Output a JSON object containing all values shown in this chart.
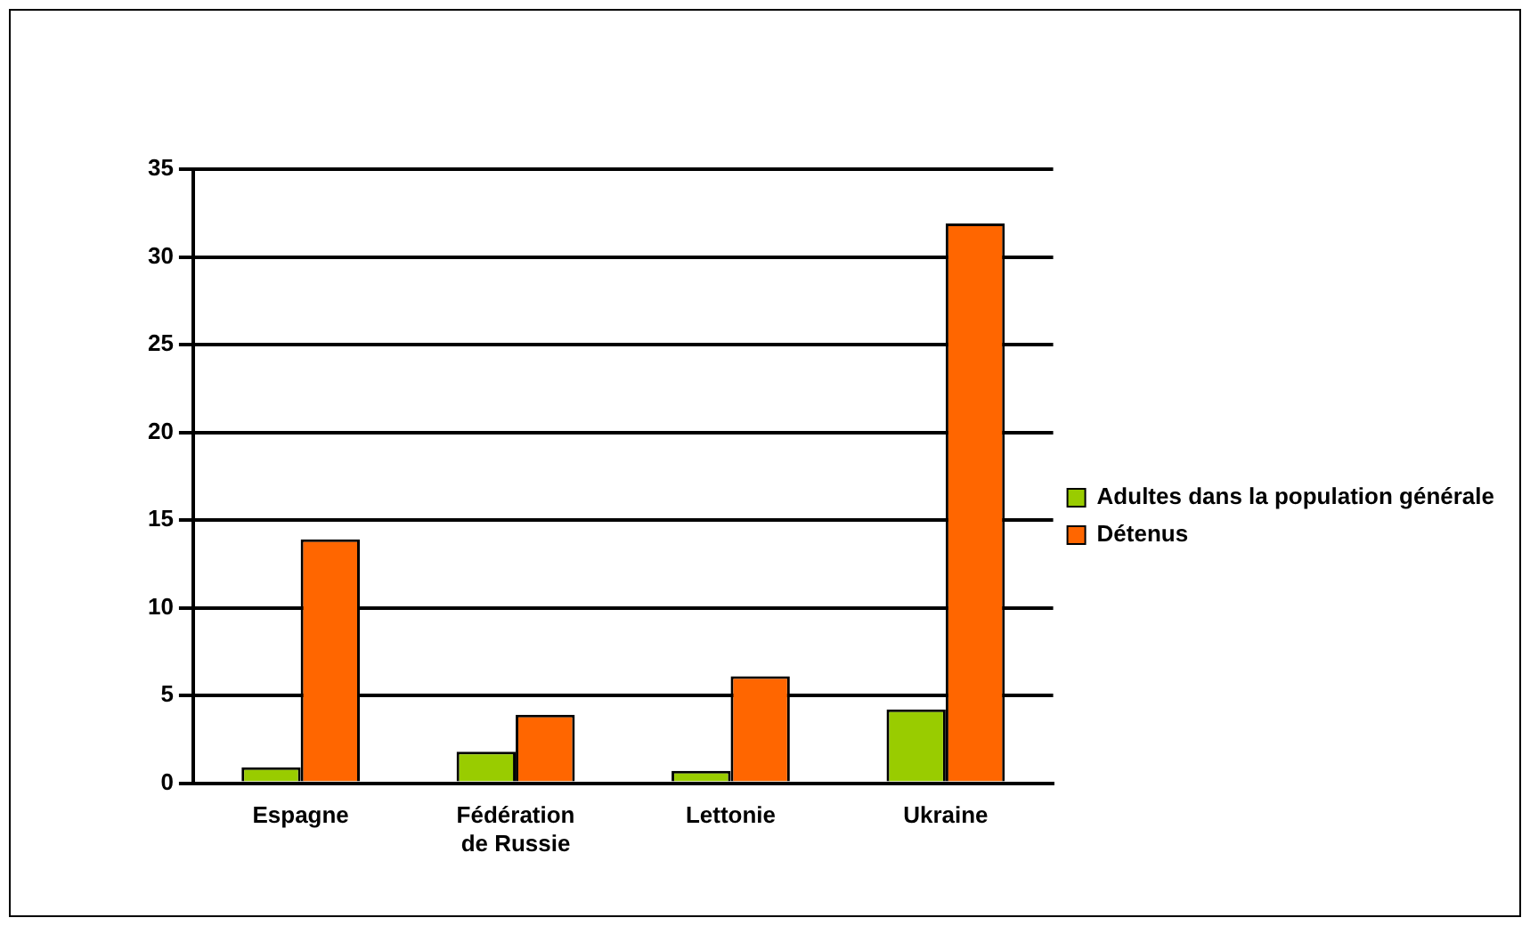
{
  "chart_data": {
    "type": "bar",
    "categories": [
      "Espagne",
      "Fédération de Russie",
      "Lettonie",
      "Ukraine"
    ],
    "series": [
      {
        "name": "Adultes dans la population générale",
        "color": "#99cc00",
        "values": [
          0.9,
          1.8,
          0.7,
          4.2
        ]
      },
      {
        "name": "Détenus",
        "color": "#ff6600",
        "values": [
          13.9,
          3.9,
          6.1,
          31.9
        ]
      }
    ],
    "ylim": [
      0,
      35
    ],
    "yticks": [
      0,
      5,
      10,
      15,
      20,
      25,
      30,
      35
    ],
    "grid": "y",
    "legend": "right"
  }
}
